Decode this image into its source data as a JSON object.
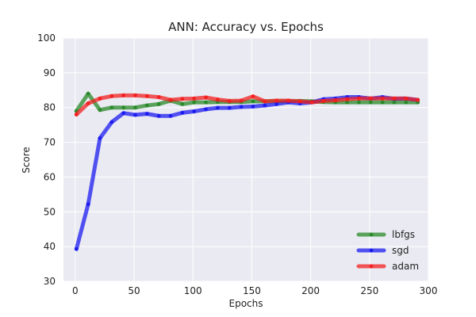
{
  "chart_data": {
    "type": "line",
    "title": "ANN: Accuracy vs. Epochs",
    "xlabel": "Epochs",
    "ylabel": "Score",
    "xlim": [
      -10,
      300
    ],
    "ylim": [
      30,
      100
    ],
    "xticks": [
      0,
      50,
      100,
      150,
      200,
      250,
      300
    ],
    "yticks": [
      30,
      40,
      50,
      60,
      70,
      80,
      90,
      100
    ],
    "grid": true,
    "legend_position": "bottom-right",
    "background": "#eaeaf2",
    "x": [
      1,
      11,
      21,
      31,
      41,
      51,
      61,
      71,
      81,
      91,
      101,
      111,
      121,
      131,
      141,
      151,
      161,
      171,
      181,
      191,
      201,
      211,
      221,
      231,
      241,
      251,
      261,
      271,
      281,
      291
    ],
    "series": [
      {
        "name": "lbfgs",
        "color": "#2a8a2a",
        "values": [
          79.0,
          84.0,
          79.3,
          80.0,
          80.0,
          80.0,
          80.6,
          81.0,
          82.0,
          81.0,
          81.5,
          81.5,
          81.6,
          81.6,
          81.6,
          81.8,
          81.8,
          81.8,
          81.8,
          81.9,
          81.8,
          81.6,
          81.5,
          81.5,
          81.5,
          81.5,
          81.5,
          81.5,
          81.5,
          81.5
        ]
      },
      {
        "name": "sgd",
        "color": "#1c1cf0",
        "values": [
          39.3,
          52.2,
          71.2,
          75.8,
          78.4,
          77.9,
          78.2,
          77.6,
          77.6,
          78.5,
          78.9,
          79.5,
          79.9,
          79.9,
          80.2,
          80.3,
          80.6,
          81.0,
          81.5,
          81.2,
          81.5,
          82.4,
          82.6,
          83.0,
          83.0,
          82.6,
          83.0,
          82.5,
          82.6,
          82.2
        ]
      },
      {
        "name": "adam",
        "color": "#f22020",
        "values": [
          78.0,
          81.2,
          82.6,
          83.3,
          83.5,
          83.5,
          83.3,
          83.0,
          82.2,
          82.5,
          82.6,
          82.9,
          82.3,
          81.9,
          82.0,
          83.2,
          81.8,
          82.0,
          82.0,
          81.8,
          81.5,
          81.9,
          82.1,
          82.4,
          82.6,
          82.6,
          82.6,
          82.6,
          82.6,
          82.2
        ]
      }
    ]
  }
}
